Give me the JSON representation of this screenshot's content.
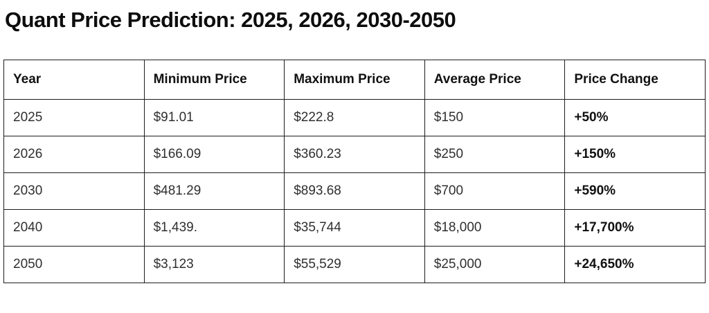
{
  "page": {
    "title": "Quant Price Prediction: 2025, 2026, 2030-2050"
  },
  "table": {
    "columns": [
      "Year",
      "Minimum Price",
      "Maximum Price",
      "Average Price",
      "Price Change"
    ],
    "rows": [
      [
        "2025",
        "$91.01",
        "$222.8",
        "$150",
        "+50%"
      ],
      [
        "2026",
        "$166.09",
        "$360.23",
        "$250",
        "+150%"
      ],
      [
        "2030",
        "$481.29",
        "$893.68",
        "$700",
        "+590%"
      ],
      [
        "2040",
        "$1,439.",
        "$35,744",
        "$18,000",
        "+17,700%"
      ],
      [
        "2050",
        "$3,123",
        "$55,529",
        "$25,000",
        "+24,650%"
      ]
    ]
  },
  "chart_data": {
    "type": "table",
    "title": "Quant Price Prediction: 2025, 2026, 2030-2050",
    "columns": [
      "Year",
      "Minimum Price",
      "Maximum Price",
      "Average Price",
      "Price Change"
    ],
    "rows": [
      {
        "year": 2025,
        "minimum_price_usd": 91.01,
        "maximum_price_usd": 222.8,
        "average_price_usd": 150,
        "price_change_pct": 50
      },
      {
        "year": 2026,
        "minimum_price_usd": 166.09,
        "maximum_price_usd": 360.23,
        "average_price_usd": 250,
        "price_change_pct": 150
      },
      {
        "year": 2030,
        "minimum_price_usd": 481.29,
        "maximum_price_usd": 893.68,
        "average_price_usd": 700,
        "price_change_pct": 590
      },
      {
        "year": 2040,
        "minimum_price_usd": 1439,
        "maximum_price_usd": 35744,
        "average_price_usd": 18000,
        "price_change_pct": 17700
      },
      {
        "year": 2050,
        "minimum_price_usd": 3123,
        "maximum_price_usd": 55529,
        "average_price_usd": 25000,
        "price_change_pct": 24650
      }
    ],
    "colors": {
      "border": "#1c1c1c",
      "text": "#2f2f2f",
      "header_text": "#111111",
      "background": "#ffffff"
    }
  }
}
